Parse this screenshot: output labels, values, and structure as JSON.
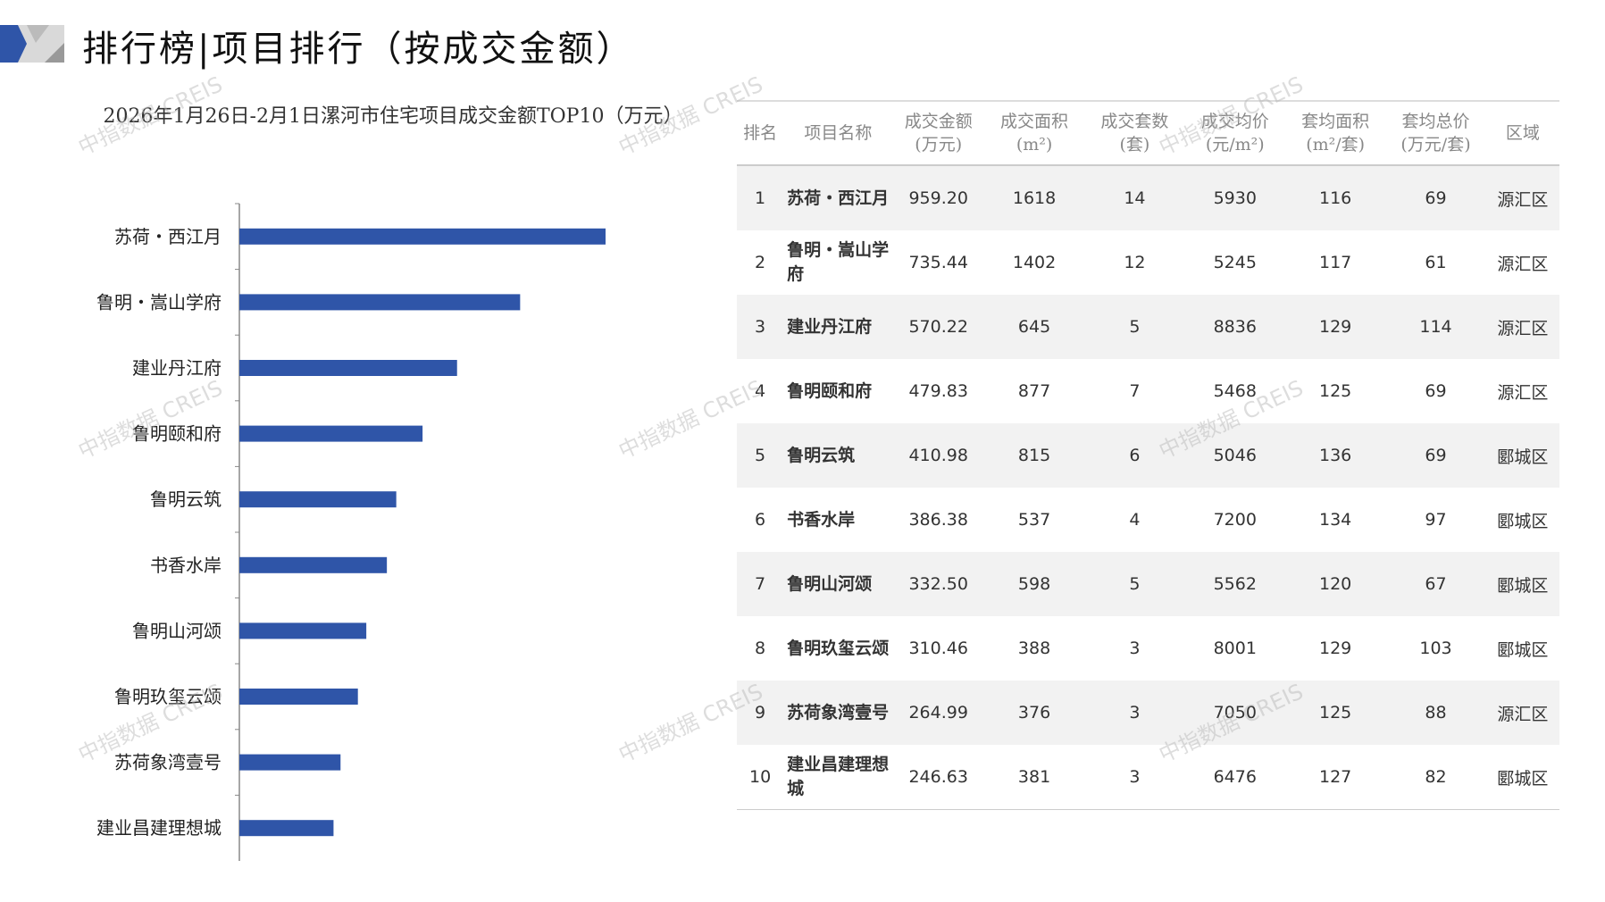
{
  "header": {
    "title": "排行榜|项目排行（按成交金额）"
  },
  "watermark": "中指数据 CREIS",
  "chart_data": {
    "type": "bar",
    "orientation": "horizontal",
    "title": "2026年1月26日-2月1日漯河市住宅项目成交金额TOP10（万元）",
    "categories": [
      "苏荷・西江月",
      "鲁明・嵩山学府",
      "建业丹江府",
      "鲁明颐和府",
      "鲁明云筑",
      "书香水岸",
      "鲁明山河颂",
      "鲁明玖玺云颂",
      "苏荷象湾壹号",
      "建业昌建理想城"
    ],
    "values": [
      959.2,
      735.44,
      570.22,
      479.83,
      410.98,
      386.38,
      332.5,
      310.46,
      264.99,
      246.63
    ],
    "color": "#2f55a8",
    "grid": false
  },
  "table": {
    "headers": [
      "排名",
      "项目名称",
      "成交金额\n(万元)",
      "成交面积\n(m²)",
      "成交套数\n(套)",
      "成交均价\n(元/m²)",
      "套均面积\n(m²/套)",
      "套均总价\n(万元/套)",
      "区域"
    ],
    "rows": [
      [
        "1",
        "苏荷・西江月",
        "959.20",
        "1618",
        "14",
        "5930",
        "116",
        "69",
        "源汇区"
      ],
      [
        "2",
        "鲁明・嵩山学府",
        "735.44",
        "1402",
        "12",
        "5245",
        "117",
        "61",
        "源汇区"
      ],
      [
        "3",
        "建业丹江府",
        "570.22",
        "645",
        "5",
        "8836",
        "129",
        "114",
        "源汇区"
      ],
      [
        "4",
        "鲁明颐和府",
        "479.83",
        "877",
        "7",
        "5468",
        "125",
        "69",
        "源汇区"
      ],
      [
        "5",
        "鲁明云筑",
        "410.98",
        "815",
        "6",
        "5046",
        "136",
        "69",
        "郾城区"
      ],
      [
        "6",
        "书香水岸",
        "386.38",
        "537",
        "4",
        "7200",
        "134",
        "97",
        "郾城区"
      ],
      [
        "7",
        "鲁明山河颂",
        "332.50",
        "598",
        "5",
        "5562",
        "120",
        "67",
        "郾城区"
      ],
      [
        "8",
        "鲁明玖玺云颂",
        "310.46",
        "388",
        "3",
        "8001",
        "129",
        "103",
        "郾城区"
      ],
      [
        "9",
        "苏荷象湾壹号",
        "264.99",
        "376",
        "3",
        "7050",
        "125",
        "88",
        "源汇区"
      ],
      [
        "10",
        "建业昌建理想城",
        "246.63",
        "381",
        "3",
        "6476",
        "127",
        "82",
        "郾城区"
      ]
    ]
  }
}
